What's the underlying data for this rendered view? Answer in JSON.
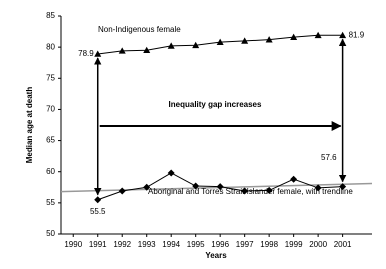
{
  "chart_data": {
    "type": "line",
    "x_label": "Years",
    "y_label": "Median age at death",
    "annotation": "Inequality gap increases",
    "xlim": [
      1989.5,
      2002.2
    ],
    "xticks": [
      1990,
      1991,
      1992,
      1993,
      1994,
      1995,
      1996,
      1997,
      1998,
      1999,
      2000,
      2001
    ],
    "ylim": [
      50,
      85
    ],
    "yticks": [
      50,
      55,
      60,
      65,
      70,
      75,
      80,
      85
    ],
    "series": [
      {
        "name": "Non-Indigenous female",
        "color": "#000000",
        "marker": "triangle",
        "x": [
          1991,
          1992,
          1993,
          1994,
          1995,
          1996,
          1997,
          1998,
          1999,
          2000,
          2001
        ],
        "values": [
          78.9,
          79.4,
          79.5,
          80.2,
          80.3,
          80.8,
          81.0,
          81.2,
          81.6,
          81.9,
          81.9
        ]
      },
      {
        "name": "Aboriginal and Torres Strait Islander female, with trendline",
        "color": "#000000",
        "marker": "diamond",
        "x": [
          1991,
          1992,
          1993,
          1994,
          1995,
          1996,
          1997,
          1998,
          1999,
          2000,
          2001
        ],
        "values": [
          55.5,
          56.9,
          57.5,
          59.8,
          57.7,
          57.6,
          56.9,
          57.0,
          58.8,
          57.4,
          57.6
        ]
      }
    ],
    "trendline": {
      "color": "#999999",
      "x": [
        1989.5,
        2002.2
      ],
      "values": [
        56.8,
        58.1
      ]
    }
  }
}
